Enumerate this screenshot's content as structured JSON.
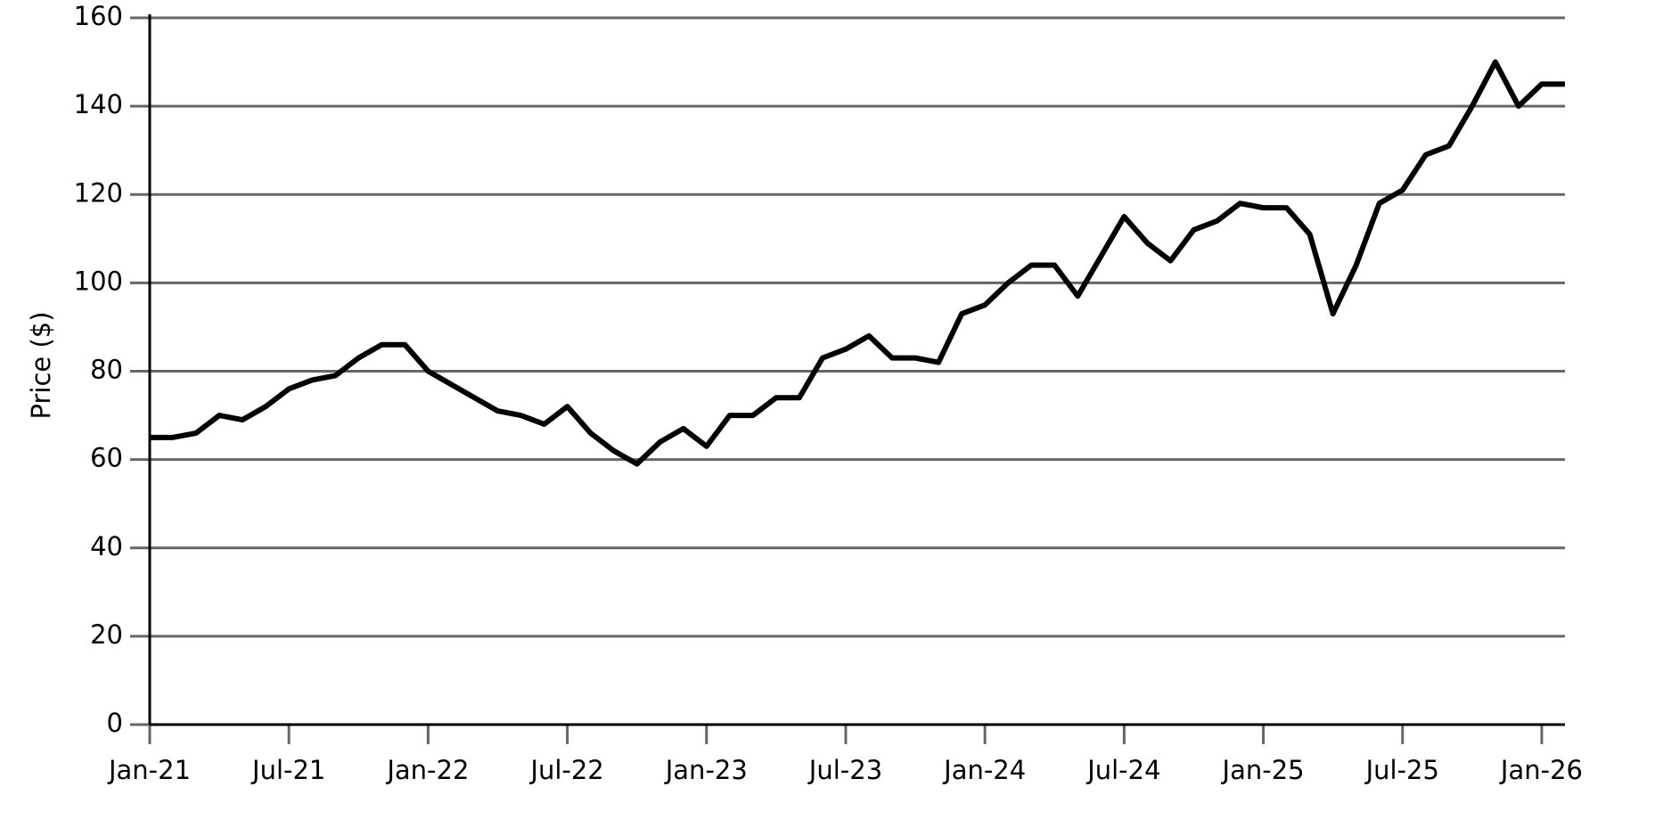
{
  "chart_data": {
    "type": "line",
    "y_label": "Price ($)",
    "x": [
      "2021-01",
      "2021-02",
      "2021-03",
      "2021-04",
      "2021-05",
      "2021-06",
      "2021-07",
      "2021-08",
      "2021-09",
      "2021-10",
      "2021-11",
      "2021-12",
      "2022-01",
      "2022-02",
      "2022-03",
      "2022-04",
      "2022-05",
      "2022-06",
      "2022-07",
      "2022-08",
      "2022-09",
      "2022-10",
      "2022-11",
      "2022-12",
      "2023-01",
      "2023-02",
      "2023-03",
      "2023-04",
      "2023-05",
      "2023-06",
      "2023-07",
      "2023-08",
      "2023-09",
      "2023-10",
      "2023-11",
      "2023-12",
      "2024-01",
      "2024-02",
      "2024-03",
      "2024-04",
      "2024-05",
      "2024-06",
      "2024-07",
      "2024-08",
      "2024-09",
      "2024-10",
      "2024-11",
      "2024-12",
      "2025-01",
      "2025-02",
      "2025-03",
      "2025-04",
      "2025-05",
      "2025-06",
      "2025-07",
      "2025-08",
      "2025-09",
      "2025-10",
      "2025-11",
      "2025-12",
      "2026-01",
      "2026-02"
    ],
    "series": [
      {
        "name": "Price",
        "color": "#000000",
        "values": [
          65,
          65,
          66,
          70,
          69,
          72,
          76,
          78,
          79,
          83,
          86,
          86,
          80,
          77,
          74,
          71,
          70,
          68,
          72,
          66,
          62,
          59,
          64,
          67,
          63,
          70,
          70,
          74,
          74,
          83,
          85,
          88,
          83,
          83,
          82,
          93,
          95,
          100,
          104,
          104,
          97,
          106,
          115,
          109,
          105,
          112,
          114,
          118,
          117,
          117,
          111,
          93,
          104,
          118,
          121,
          129,
          131,
          140,
          150,
          140,
          145,
          145
        ]
      }
    ],
    "xlim": [
      "2021-01",
      "2026-02"
    ],
    "xticks": [
      {
        "value": "2021-01",
        "label": "Jan-21"
      },
      {
        "value": "2021-07",
        "label": "Jul-21"
      },
      {
        "value": "2022-01",
        "label": "Jan-22"
      },
      {
        "value": "2022-07",
        "label": "Jul-22"
      },
      {
        "value": "2023-01",
        "label": "Jan-23"
      },
      {
        "value": "2023-07",
        "label": "Jul-23"
      },
      {
        "value": "2024-01",
        "label": "Jan-24"
      },
      {
        "value": "2024-07",
        "label": "Jul-24"
      },
      {
        "value": "2025-01",
        "label": "Jan-25"
      },
      {
        "value": "2025-07",
        "label": "Jul-25"
      },
      {
        "value": "2026-01",
        "label": "Jan-26"
      }
    ],
    "ylim": [
      0,
      160
    ],
    "yticks": [
      0,
      20,
      40,
      60,
      80,
      100,
      120,
      140,
      160
    ],
    "grid": true
  }
}
